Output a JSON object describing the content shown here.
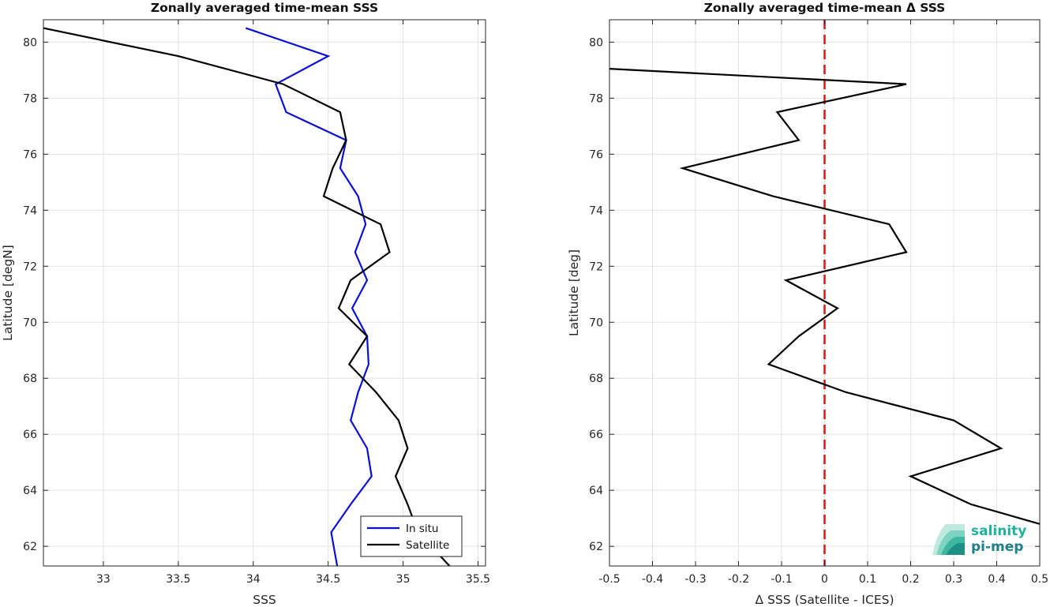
{
  "chart_data": [
    {
      "type": "line",
      "title": "Zonally averaged time-mean SSS",
      "xlabel": "SSS",
      "ylabel": "Latitude [degN]",
      "xlim": [
        32.6,
        35.55
      ],
      "ylim": [
        61.3,
        80.8
      ],
      "xticks": [
        33,
        33.5,
        34,
        34.5,
        35,
        35.5
      ],
      "yticks": [
        62,
        64,
        66,
        68,
        70,
        72,
        74,
        76,
        78,
        80
      ],
      "grid": true,
      "legend": "bottom-right",
      "series": [
        {
          "name": "In situ",
          "color": "#0a10d8",
          "points": [
            [
              33.95,
              80.5
            ],
            [
              34.5,
              79.5
            ],
            [
              34.15,
              78.5
            ],
            [
              34.22,
              77.5
            ],
            [
              34.62,
              76.5
            ],
            [
              34.58,
              75.5
            ],
            [
              34.7,
              74.5
            ],
            [
              34.75,
              73.5
            ],
            [
              34.68,
              72.5
            ],
            [
              34.76,
              71.5
            ],
            [
              34.66,
              70.5
            ],
            [
              34.76,
              69.5
            ],
            [
              34.77,
              68.5
            ],
            [
              34.7,
              67.5
            ],
            [
              34.65,
              66.5
            ],
            [
              34.76,
              65.5
            ],
            [
              34.79,
              64.5
            ],
            [
              34.65,
              63.5
            ],
            [
              34.52,
              62.5
            ],
            [
              34.56,
              61.3
            ]
          ]
        },
        {
          "name": "Satellite",
          "color": "#000000",
          "points": [
            [
              32.6,
              80.5
            ],
            [
              33.5,
              79.5
            ],
            [
              34.2,
              78.5
            ],
            [
              34.58,
              77.5
            ],
            [
              34.62,
              76.5
            ],
            [
              34.53,
              75.5
            ],
            [
              34.47,
              74.5
            ],
            [
              34.85,
              73.5
            ],
            [
              34.91,
              72.5
            ],
            [
              34.65,
              71.5
            ],
            [
              34.57,
              70.5
            ],
            [
              34.76,
              69.5
            ],
            [
              34.64,
              68.5
            ],
            [
              34.82,
              67.5
            ],
            [
              34.97,
              66.5
            ],
            [
              35.03,
              65.5
            ],
            [
              34.95,
              64.5
            ],
            [
              35.03,
              63.5
            ],
            [
              35.1,
              62.5
            ],
            [
              35.31,
              61.3
            ]
          ]
        }
      ]
    },
    {
      "type": "line",
      "title": "Zonally averaged time-mean Δ SSS",
      "xlabel": "Δ SSS (Satellite - ICES)",
      "ylabel": "Latitude [deg]",
      "xlim": [
        -0.5,
        0.5
      ],
      "ylim": [
        61.3,
        80.8
      ],
      "xticks": [
        -0.5,
        -0.4,
        -0.3,
        -0.2,
        -0.1,
        0,
        0.1,
        0.2,
        0.3,
        0.4,
        0.5
      ],
      "yticks": [
        62,
        64,
        66,
        68,
        70,
        72,
        74,
        76,
        78,
        80
      ],
      "grid": true,
      "reference_line": {
        "x": 0,
        "color": "#e11a1a",
        "style": "dashed"
      },
      "series": [
        {
          "color": "#000000",
          "points": [
            [
              -0.5,
              79.05
            ],
            [
              0.19,
              78.5
            ],
            [
              -0.11,
              77.5
            ],
            [
              -0.06,
              76.5
            ],
            [
              -0.33,
              75.5
            ],
            [
              -0.12,
              74.5
            ],
            [
              0.15,
              73.5
            ],
            [
              0.19,
              72.5
            ],
            [
              -0.09,
              71.5
            ],
            [
              0.03,
              70.5
            ],
            [
              -0.06,
              69.5
            ],
            [
              -0.13,
              68.5
            ],
            [
              0.05,
              67.5
            ],
            [
              0.3,
              66.5
            ],
            [
              0.41,
              65.5
            ],
            [
              0.2,
              64.5
            ],
            [
              0.34,
              63.5
            ],
            [
              0.5,
              62.8
            ]
          ]
        }
      ]
    }
  ],
  "logo": {
    "line1": "salinity",
    "line2": "pi-mep"
  }
}
